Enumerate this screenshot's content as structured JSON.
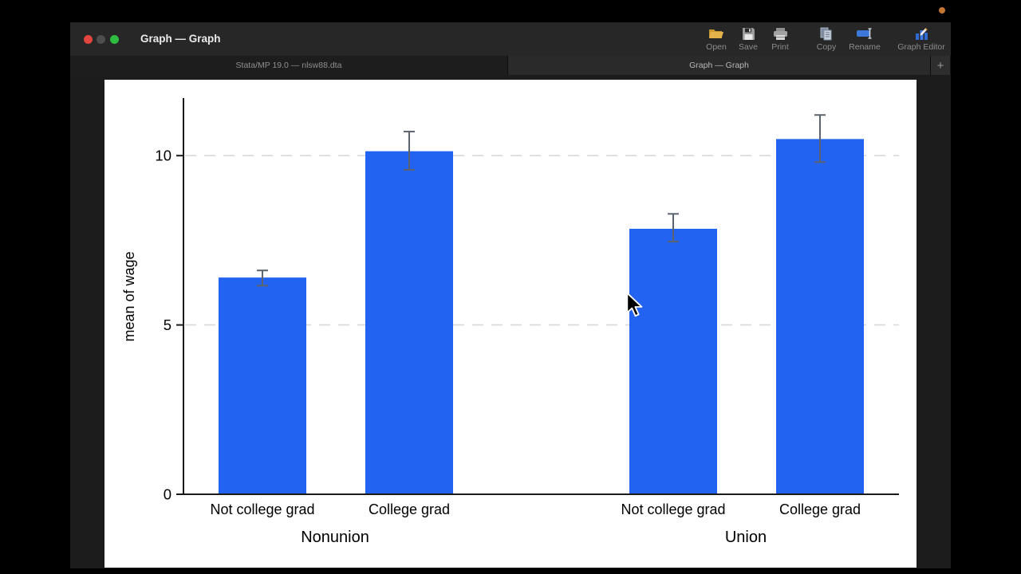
{
  "screen": {
    "recording_dot_color": "#c4762e"
  },
  "window": {
    "title": "Graph — Graph",
    "traffic_lights": {
      "close": "#e0463f",
      "minimize_disabled": "#4d4d4d",
      "zoom": "#2fbd41"
    },
    "toolbar": [
      {
        "label": "Open",
        "icon": "folder-open-icon"
      },
      {
        "label": "Save",
        "icon": "floppy-disk-icon"
      },
      {
        "label": "Print",
        "icon": "printer-icon"
      },
      {
        "label": "Copy",
        "icon": "copy-pages-icon"
      },
      {
        "label": "Rename",
        "icon": "rename-field-icon"
      },
      {
        "label": "Graph Editor",
        "icon": "graph-editor-icon"
      }
    ],
    "tabs": [
      {
        "label": "Stata/MP 19.0 — nlsw88.dta",
        "active": false
      },
      {
        "label": "Graph — Graph",
        "active": true
      }
    ],
    "new_tab_button": "+"
  },
  "chart_data": {
    "type": "bar",
    "title": "",
    "xlabel": "",
    "ylabel": "mean of wage",
    "ylim": [
      0,
      11.7
    ],
    "yticks": [
      0,
      5,
      10
    ],
    "grid": "horizontal dashed at labeled ticks above zero",
    "legend": "none",
    "bar_color": "#2363f2",
    "error_bar_color": "#5b646e",
    "axis_color": "#1a1a1a",
    "grid_color": "#d9d9d9",
    "groups": [
      {
        "label": "Nonunion",
        "bars": [
          {
            "category": "Not college grad",
            "value": 6.4,
            "ci_low": 6.16,
            "ci_high": 6.61
          },
          {
            "category": "College grad",
            "value": 10.13,
            "ci_low": 9.58,
            "ci_high": 10.71
          }
        ]
      },
      {
        "label": "Union",
        "bars": [
          {
            "category": "Not college grad",
            "value": 7.84,
            "ci_low": 7.46,
            "ci_high": 8.28
          },
          {
            "category": "College grad",
            "value": 10.49,
            "ci_low": 9.81,
            "ci_high": 11.2
          }
        ]
      }
    ]
  }
}
